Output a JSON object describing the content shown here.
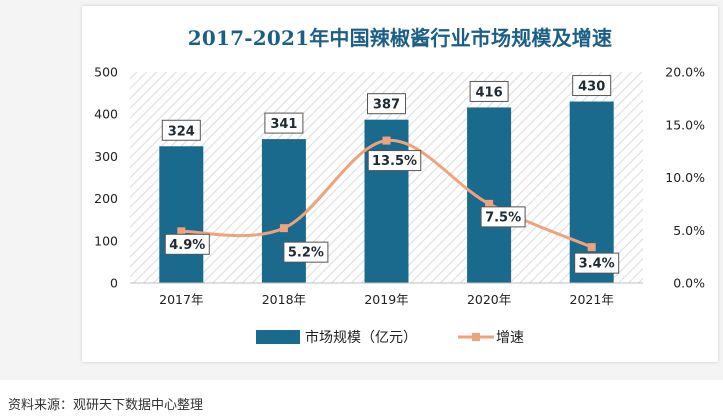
{
  "chart_data": {
    "type": "bar",
    "title": "2017-2021年中国辣椒酱行业市场规模及增速",
    "categories": [
      "2017年",
      "2018年",
      "2019年",
      "2020年",
      "2021年"
    ],
    "series": [
      {
        "name": "市场规模（亿元）",
        "type": "bar",
        "axis": "left",
        "values": [
          324,
          341,
          387,
          416,
          430
        ],
        "data_labels": [
          "324",
          "341",
          "387",
          "416",
          "430"
        ],
        "color": "#1a6a8e"
      },
      {
        "name": "增速",
        "type": "line",
        "axis": "right",
        "values": [
          4.9,
          5.2,
          13.5,
          7.5,
          3.4
        ],
        "data_labels": [
          "4.9%",
          "5.2%",
          "13.5%",
          "7.5%",
          "3.4%"
        ],
        "color": "#f0a27d",
        "smooth": true,
        "marker": "square"
      }
    ],
    "y_left": {
      "min": 0,
      "max": 500,
      "ticks": [
        "0",
        "100",
        "200",
        "300",
        "400",
        "500"
      ]
    },
    "y_right": {
      "min": 0,
      "max": 20,
      "ticks": [
        "0.0%",
        "5.0%",
        "10.0%",
        "15.0%",
        "20.0%"
      ]
    },
    "grid": false,
    "plot_background": "diagonal-hatch",
    "legend_position": "bottom"
  },
  "source": "资料来源：观研天下数据中心整理"
}
